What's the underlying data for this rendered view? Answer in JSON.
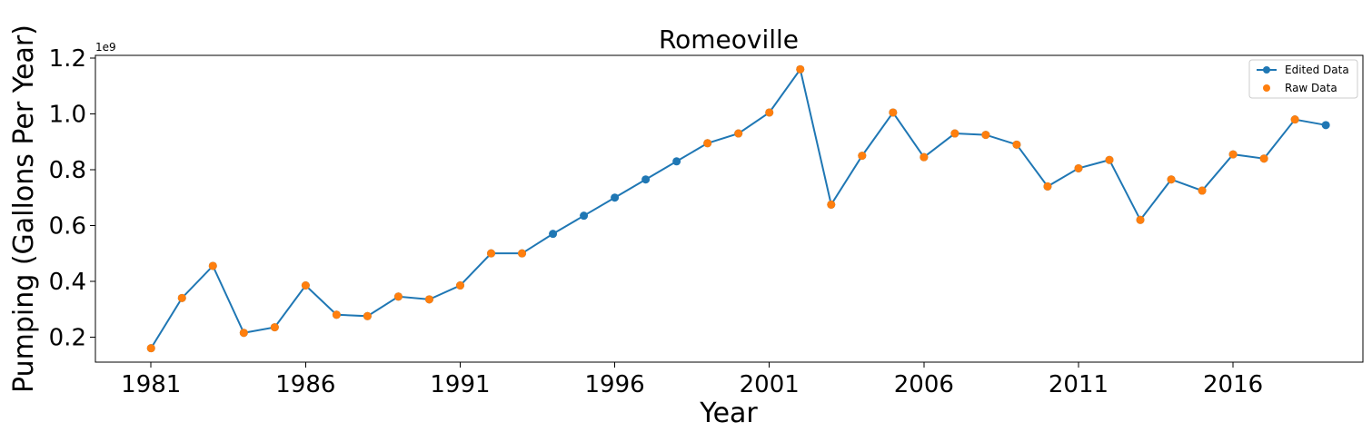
{
  "chart_data": {
    "type": "line",
    "title": "Romeoville",
    "xlabel": "Year",
    "ylabel": "Pumping (Gallons Per Year)",
    "y_multiplier_label": "1e9",
    "xlim": [
      1979.2,
      2020.2
    ],
    "ylim": [
      0.11,
      1.21
    ],
    "x_ticks": [
      1981,
      1986,
      1991,
      1996,
      2001,
      2006,
      2011,
      2016
    ],
    "y_ticks": [
      0.2,
      0.4,
      0.6,
      0.8,
      1.0,
      1.2
    ],
    "y_tick_labels": [
      "0.2",
      "0.4",
      "0.6",
      "0.8",
      "1.0",
      "1.2"
    ],
    "grid": false,
    "legend_position": "top-right",
    "series": [
      {
        "name": "Edited Data",
        "style": "line-with-markers",
        "color": "#1f77b4",
        "x": [
          1981,
          1982,
          1983,
          1984,
          1985,
          1986,
          1987,
          1988,
          1989,
          1990,
          1991,
          1992,
          1993,
          1994,
          1995,
          1996,
          1997,
          1998,
          1999,
          2000,
          2001,
          2002,
          2003,
          2004,
          2005,
          2006,
          2007,
          2008,
          2009,
          2010,
          2011,
          2012,
          2013,
          2014,
          2015,
          2016,
          2017,
          2018,
          2019
        ],
        "values": [
          0.16,
          0.34,
          0.455,
          0.215,
          0.235,
          0.385,
          0.28,
          0.275,
          0.345,
          0.335,
          0.385,
          0.5,
          0.5,
          0.57,
          0.635,
          0.7,
          0.765,
          0.83,
          0.895,
          0.93,
          1.005,
          1.16,
          0.675,
          0.85,
          1.005,
          0.845,
          0.93,
          0.925,
          0.89,
          0.74,
          0.805,
          0.835,
          0.62,
          0.765,
          0.725,
          0.855,
          0.84,
          0.98,
          0.96
        ]
      },
      {
        "name": "Raw Data",
        "style": "markers",
        "color": "#ff7f0e",
        "x": [
          1981,
          1982,
          1983,
          1984,
          1985,
          1986,
          1987,
          1988,
          1989,
          1990,
          1991,
          1992,
          1993,
          1999,
          2000,
          2001,
          2002,
          2003,
          2004,
          2005,
          2006,
          2007,
          2008,
          2009,
          2010,
          2011,
          2012,
          2013,
          2014,
          2015,
          2016,
          2017,
          2018
        ],
        "values": [
          0.16,
          0.34,
          0.455,
          0.215,
          0.235,
          0.385,
          0.28,
          0.275,
          0.345,
          0.335,
          0.385,
          0.5,
          0.5,
          0.895,
          0.93,
          1.005,
          1.16,
          0.675,
          0.85,
          1.005,
          0.845,
          0.93,
          0.925,
          0.89,
          0.74,
          0.805,
          0.835,
          0.62,
          0.765,
          0.725,
          0.855,
          0.84,
          0.98
        ]
      }
    ]
  }
}
